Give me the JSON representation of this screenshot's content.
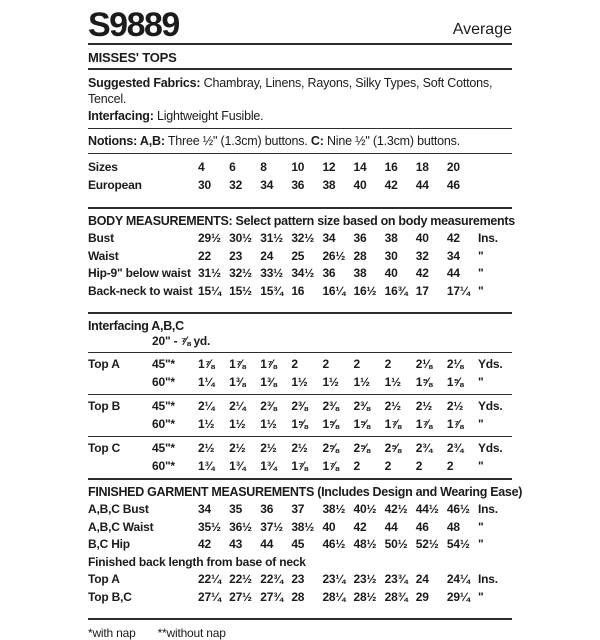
{
  "header": {
    "pattern_number": "S9889",
    "difficulty": "Average",
    "category": "MISSES' TOPS"
  },
  "info": {
    "fabrics_label": "Suggested Fabrics:",
    "fabrics_value": " Chambray, Linens, Rayons, Silky Types, Soft Cottons, Tencel.",
    "interfacing_label": "Interfacing:",
    "interfacing_value": " Lightweight Fusible.",
    "notions_seg1": "Notions: A,B:",
    "notions_seg2": " Three ½\" (1.3cm) buttons. ",
    "notions_seg3": "C:",
    "notions_seg4": " Nine ½\" (1.3cm) buttons."
  },
  "sizes_table": {
    "rows": [
      {
        "label": "Sizes",
        "values": [
          "4",
          "6",
          "8",
          "10",
          "12",
          "14",
          "16",
          "18",
          "20"
        ],
        "unit": ""
      },
      {
        "label": "European",
        "values": [
          "30",
          "32",
          "34",
          "36",
          "38",
          "40",
          "42",
          "44",
          "46"
        ],
        "unit": ""
      }
    ]
  },
  "body_table": {
    "title": "BODY MEASUREMENTS: Select pattern size based on body measurements",
    "rows": [
      {
        "label": "Bust",
        "values": [
          "29½",
          "30½",
          "31½",
          "32½",
          "34",
          "36",
          "38",
          "40",
          "42"
        ],
        "unit": "Ins."
      },
      {
        "label": "Waist",
        "values": [
          "22",
          "23",
          "24",
          "25",
          "26½",
          "28",
          "30",
          "32",
          "34"
        ],
        "unit": "\""
      },
      {
        "label": "Hip-9\" below waist",
        "values": [
          "31½",
          "32½",
          "33½",
          "34½",
          "36",
          "38",
          "40",
          "42",
          "44"
        ],
        "unit": "\""
      },
      {
        "label": "Back-neck to waist",
        "values": [
          "15¼",
          "15½",
          "15¾",
          "16",
          "16¼",
          "16½",
          "16¾",
          "17",
          "17¼"
        ],
        "unit": "\""
      }
    ]
  },
  "interfacing": {
    "title": "Interfacing A,B,C",
    "width_yardage": "20\" - ⅞ yd."
  },
  "yardage": {
    "top_a": {
      "rows": [
        {
          "label": "Top A",
          "sub": "45\"*",
          "values": [
            "1⅞",
            "1⅞",
            "1⅞",
            "2",
            "2",
            "2",
            "2",
            "2⅛",
            "2⅛"
          ],
          "unit": "Yds."
        },
        {
          "label": "",
          "sub": "60\"*",
          "values": [
            "1¼",
            "1⅜",
            "1⅜",
            "1½",
            "1½",
            "1½",
            "1½",
            "1⅝",
            "1⅝"
          ],
          "unit": "\""
        }
      ]
    },
    "top_b": {
      "rows": [
        {
          "label": "Top B",
          "sub": "45\"*",
          "values": [
            "2¼",
            "2¼",
            "2⅜",
            "2⅜",
            "2⅜",
            "2⅜",
            "2½",
            "2½",
            "2½"
          ],
          "unit": "Yds."
        },
        {
          "label": "",
          "sub": "60\"*",
          "values": [
            "1½",
            "1½",
            "1½",
            "1⅝",
            "1⅝",
            "1⅝",
            "1⅞",
            "1⅞",
            "1⅞"
          ],
          "unit": "\""
        }
      ]
    },
    "top_c": {
      "rows": [
        {
          "label": "Top C",
          "sub": "45\"*",
          "values": [
            "2½",
            "2½",
            "2½",
            "2½",
            "2⅝",
            "2⅝",
            "2⅝",
            "2¾",
            "2¾"
          ],
          "unit": "Yds."
        },
        {
          "label": "",
          "sub": "60\"*",
          "values": [
            "1¾",
            "1¾",
            "1¾",
            "1⅞",
            "1⅞",
            "2",
            "2",
            "2",
            "2"
          ],
          "unit": "\""
        }
      ]
    }
  },
  "finished_table": {
    "title": "FINISHED GARMENT MEASUREMENTS (Includes Design and Wearing Ease)",
    "rows": [
      {
        "label": "A,B,C Bust",
        "values": [
          "34",
          "35",
          "36",
          "37",
          "38½",
          "40½",
          "42½",
          "44½",
          "46½"
        ],
        "unit": "Ins."
      },
      {
        "label": "A,B,C Waist",
        "values": [
          "35½",
          "36½",
          "37½",
          "38½",
          "40",
          "42",
          "44",
          "46",
          "48"
        ],
        "unit": "\""
      },
      {
        "label": "B,C Hip",
        "values": [
          "42",
          "43",
          "44",
          "45",
          "46½",
          "48½",
          "50½",
          "52½",
          "54½"
        ],
        "unit": "\""
      },
      {
        "label": "Finished back length from base of neck",
        "full": true
      },
      {
        "label": "Top A",
        "values": [
          "22¼",
          "22½",
          "22¾",
          "23",
          "23¼",
          "23½",
          "23¾",
          "24",
          "24¼"
        ],
        "unit": "Ins."
      },
      {
        "label": "Top B,C",
        "values": [
          "27¼",
          "27½",
          "27¾",
          "28",
          "28¼",
          "28½",
          "28¾",
          "29",
          "29¼"
        ],
        "unit": "\""
      }
    ]
  },
  "footnote": {
    "with_nap": "*with nap",
    "without_nap": "**without nap"
  }
}
